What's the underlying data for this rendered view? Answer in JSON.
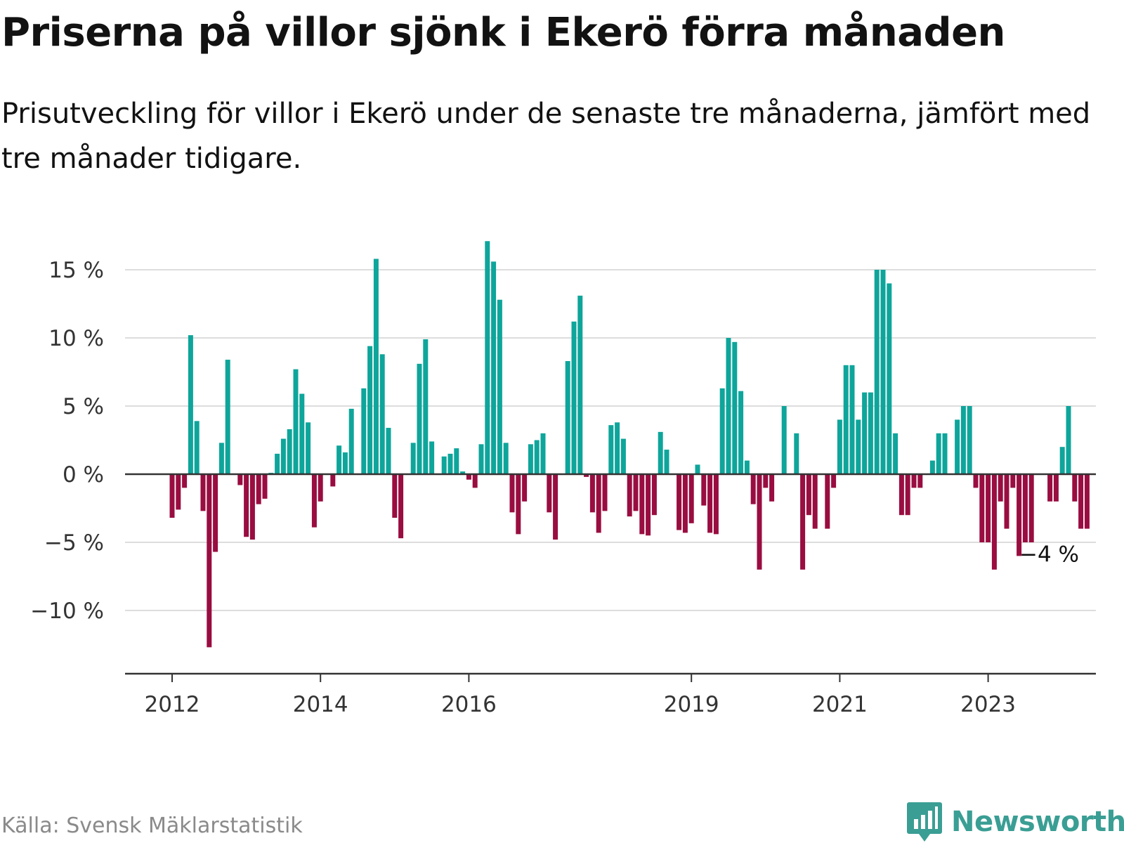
{
  "header": {
    "title": "Priserna på villor sjönk i Ekerö förra månaden",
    "subtitle": "Prisutveckling för villor i Ekerö under de senaste tre månaderna, jämfört med tre månader tidigare."
  },
  "footer": {
    "source": "Källa: Svensk Mäklarstatistik",
    "brand": "Newsworthy"
  },
  "colors": {
    "positive": "#0ea59b",
    "negative": "#990d40",
    "grid": "#dddddd",
    "axis": "#333333",
    "brand": "#3a9e94"
  },
  "icons": {
    "logo": "newsworthy-bar-chart-icon"
  },
  "chart_data": {
    "type": "bar",
    "title": "Priserna på villor sjönk i Ekerö förra månaden",
    "xlabel": "",
    "ylabel": "",
    "ylim": [
      -14.5,
      17
    ],
    "yticks": [
      -10,
      -5,
      0,
      5,
      10,
      15
    ],
    "ytick_labels": [
      "−10 %",
      "−5 %",
      "0 %",
      "5 %",
      "10 %",
      "15 %"
    ],
    "x_start": "2012-01",
    "x_end": "2023-11",
    "xticks": [
      {
        "label": "2012",
        "index": 0
      },
      {
        "label": "2014",
        "index": 24
      },
      {
        "label": "2016",
        "index": 48
      },
      {
        "label": "2019",
        "index": 84
      },
      {
        "label": "2021",
        "index": 108
      },
      {
        "label": "2023",
        "index": 132
      }
    ],
    "values": [
      -3.2,
      -2.6,
      -1.0,
      10.2,
      3.9,
      -2.7,
      -12.7,
      -5.7,
      2.3,
      8.4,
      0,
      -0.8,
      -4.6,
      -4.8,
      -2.2,
      -1.8,
      0.1,
      1.5,
      2.6,
      3.3,
      7.7,
      5.9,
      3.8,
      -3.9,
      -2.0,
      0,
      -0.9,
      2.1,
      1.6,
      4.8,
      0,
      6.3,
      9.4,
      15.8,
      8.8,
      3.4,
      -3.2,
      -4.7,
      0,
      2.3,
      8.1,
      9.9,
      2.4,
      0,
      1.3,
      1.5,
      1.9,
      0.2,
      -0.4,
      -1.0,
      2.2,
      17.1,
      15.6,
      12.8,
      2.3,
      -2.8,
      -4.4,
      -2.0,
      2.2,
      2.5,
      3.0,
      -2.8,
      -4.8,
      0,
      8.3,
      11.2,
      13.1,
      -0.2,
      -2.8,
      -4.3,
      -2.7,
      3.6,
      3.8,
      2.6,
      -3.1,
      -2.7,
      -4.4,
      -4.5,
      -3.0,
      3.1,
      1.8,
      0,
      -4.1,
      -4.3,
      -3.6,
      0.7,
      -2.3,
      -4.3,
      -4.4,
      6.3,
      10.0,
      9.7,
      6.1,
      1.0,
      -2.2,
      -7.0,
      -1.0,
      -2.0,
      0,
      5.0,
      0,
      3.0,
      -7.0,
      -3.0,
      -4.0,
      0,
      -4.0,
      -1.0,
      4.0,
      8.0,
      8.0,
      4.0,
      6.0,
      6.0,
      15.0,
      15.0,
      14.0,
      3.0,
      -3.0,
      -3.0,
      -1.0,
      -1.0,
      0,
      1.0,
      3.0,
      3.0,
      0,
      4.0,
      5.0,
      5.0,
      -1.0,
      -5.0,
      -5.0,
      -7.0,
      -2.0,
      -4.0,
      -1.0,
      -6.0,
      -5.0,
      -5.0,
      0,
      0,
      -2.0,
      -2.0,
      2.0,
      5.0,
      -2.0,
      -4.0,
      -4.0
    ],
    "last_value_label": "−4 %"
  }
}
